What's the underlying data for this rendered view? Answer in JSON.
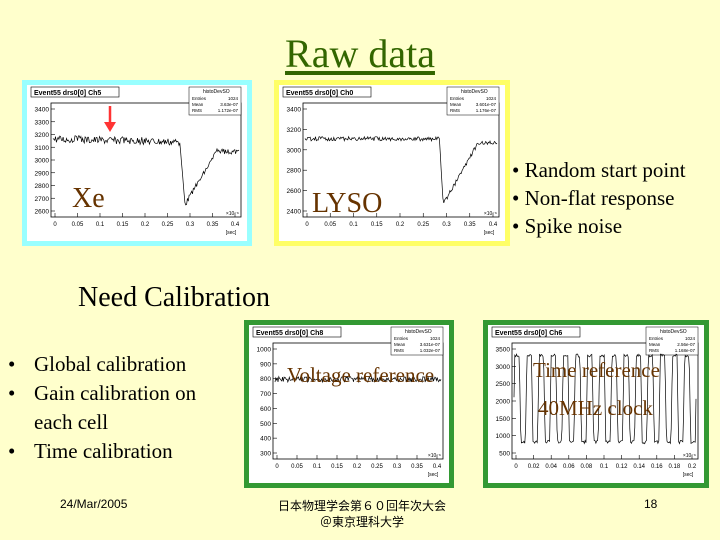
{
  "title": "Raw data",
  "bullets_right": [
    "• Random start point",
    "• Non-flat response",
    "• Spike noise"
  ],
  "need_calibration": "Need Calibration",
  "bullets_left": [
    {
      "dot": "•",
      "text": "Global calibration"
    },
    {
      "dot": "•",
      "text": "Gain calibration on each cell"
    },
    {
      "dot": "•",
      "text": "Time calibration"
    }
  ],
  "footer": {
    "date": "24/Mar/2005",
    "conference_line1": "日本物理学会第６０回年次大会",
    "conference_line2": "＠東京理科大学",
    "page_number": "18"
  },
  "plots": {
    "xe": {
      "header": "Event55 drs0[0] Ch5",
      "stats_title": "histoDevSO",
      "stats": [
        [
          "Entries",
          "1024"
        ],
        [
          "Mean",
          "3.63e-07"
        ],
        [
          "RMS",
          "1.172e-07"
        ]
      ],
      "label": "Xe",
      "border_color": "#99ffff",
      "y_ticks": [
        "3400",
        "3300",
        "3200",
        "3100",
        "3000",
        "2900",
        "2800",
        "2700",
        "2600"
      ],
      "x_ticks": [
        "0",
        "0.05",
        "0.1",
        "0.15",
        "0.2",
        "0.25",
        "0.3",
        "0.35",
        "0.4"
      ],
      "x_exp": "×10⁻⁶",
      "x_unit": "[sec]"
    },
    "lyso": {
      "header": "Event55 drs0[0] Ch0",
      "stats_title": "histoDevSO",
      "stats": [
        [
          "Entries",
          "1024"
        ],
        [
          "Mean",
          "3.601e-07"
        ],
        [
          "RMS",
          "1.176e-07"
        ]
      ],
      "label": "LYSO",
      "border_color": "#ffff66",
      "y_ticks": [
        "3400",
        "3200",
        "3000",
        "2800",
        "2600",
        "2400"
      ],
      "x_ticks": [
        "0",
        "0.05",
        "0.1",
        "0.15",
        "0.2",
        "0.25",
        "0.3",
        "0.35",
        "0.4"
      ],
      "x_exp": "×10⁻⁶",
      "x_unit": "[sec]"
    },
    "voltage": {
      "header": "Event55 drs0[0] Ch8",
      "stats_title": "histoDevSO",
      "stats": [
        [
          "Entries",
          "1024"
        ],
        [
          "Mean",
          "3.631e-07"
        ],
        [
          "RMS",
          "1.032e-07"
        ]
      ],
      "annotation": "Voltage reference",
      "border_color": "#339933",
      "y_ticks": [
        "1000",
        "900",
        "800",
        "700",
        "600",
        "500",
        "400",
        "300"
      ],
      "x_ticks": [
        "0",
        "0.05",
        "0.1",
        "0.15",
        "0.2",
        "0.25",
        "0.3",
        "0.35",
        "0.4"
      ],
      "x_exp": "×10⁻⁶",
      "x_unit": "[sec]"
    },
    "time": {
      "header": "Event55 drs0[0] Ch6",
      "stats_title": "histoDevSO",
      "stats": [
        [
          "Entries",
          "1024"
        ],
        [
          "Mean",
          "2.56e-07"
        ],
        [
          "RMS",
          "1.168e-07"
        ]
      ],
      "annotation_line1": "Time reference",
      "annotation_line2": "40MHz clock",
      "border_color": "#339933",
      "y_ticks": [
        "3500",
        "3000",
        "2500",
        "2000",
        "1500",
        "1000",
        "500"
      ],
      "x_ticks": [
        "0",
        "0.02",
        "0.04",
        "0.06",
        "0.08",
        "0.1",
        "0.12",
        "0.14",
        "0.16",
        "0.18",
        "0.2"
      ],
      "x_exp": "×10⁻⁶",
      "x_unit": "[sec]"
    }
  }
}
